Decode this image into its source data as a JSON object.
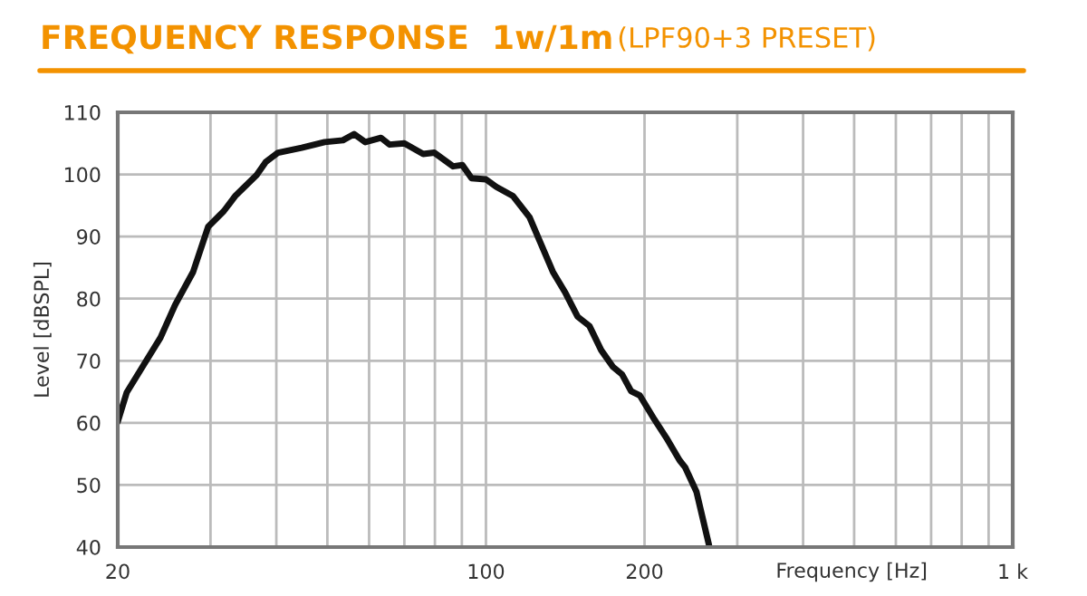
{
  "chart_data": {
    "type": "line",
    "title": "FREQUENCY RESPONSE  1w/1m",
    "subtitle": "(LPF90+3 PRESET)",
    "xlabel": "Frequency [Hz]",
    "ylabel": "Level [dBSPL]",
    "log": "x",
    "xlim": [
      20,
      1000
    ],
    "ylim": [
      40,
      110
    ],
    "xticks": [
      20,
      {
        "value": 30,
        "label": null
      },
      {
        "value": 40,
        "label": null
      },
      {
        "value": 50,
        "label": null
      },
      {
        "value": 60,
        "label": null
      },
      {
        "value": 70,
        "label": null
      },
      {
        "value": 80,
        "label": null
      },
      {
        "value": 90,
        "label": null
      },
      100,
      200,
      {
        "value": 300,
        "label": null
      },
      {
        "value": 400,
        "label": null
      },
      {
        "value": 500,
        "label": null
      },
      {
        "value": 600,
        "label": null
      },
      {
        "value": 700,
        "label": null
      },
      {
        "value": 800,
        "label": null
      },
      {
        "value": 900,
        "label": null
      },
      {
        "value": 1000,
        "label": "1 k"
      }
    ],
    "yticks": [
      40,
      50,
      60,
      70,
      80,
      90,
      100,
      110
    ],
    "grid": true,
    "marker": "none",
    "line_style": "solid",
    "series": [
      {
        "color": "#111111",
        "x": [
          20,
          20.8,
          22.2,
          24.1,
          25.7,
          27.8,
          29.7,
          31.8,
          33.4,
          36.7,
          38.2,
          40.3,
          44.7,
          49.4,
          53.5,
          56.2,
          59,
          63.2,
          65.6,
          70,
          76,
          79.8,
          86.6,
          90.2,
          93.9,
          100,
          104.6,
          112.6,
          121,
          134,
          141.6,
          149.3,
          157.2,
          165.5,
          174.3,
          181.3,
          188.6,
          196,
          209,
          220,
          233,
          239,
          251,
          265
        ],
        "values": [
          60.2,
          64.9,
          68.8,
          73.7,
          79,
          84.3,
          91.6,
          94.1,
          96.5,
          99.9,
          102,
          103.5,
          104.3,
          105.2,
          105.5,
          106.5,
          105.2,
          105.9,
          104.8,
          105,
          103.3,
          103.5,
          101.3,
          101.5,
          99.4,
          99.2,
          98,
          96.5,
          93.1,
          84.3,
          80.9,
          77.1,
          75.6,
          71.7,
          69,
          67.8,
          65.1,
          64.4,
          60.5,
          57.6,
          54,
          52.8,
          48.9,
          40.4
        ]
      }
    ]
  }
}
